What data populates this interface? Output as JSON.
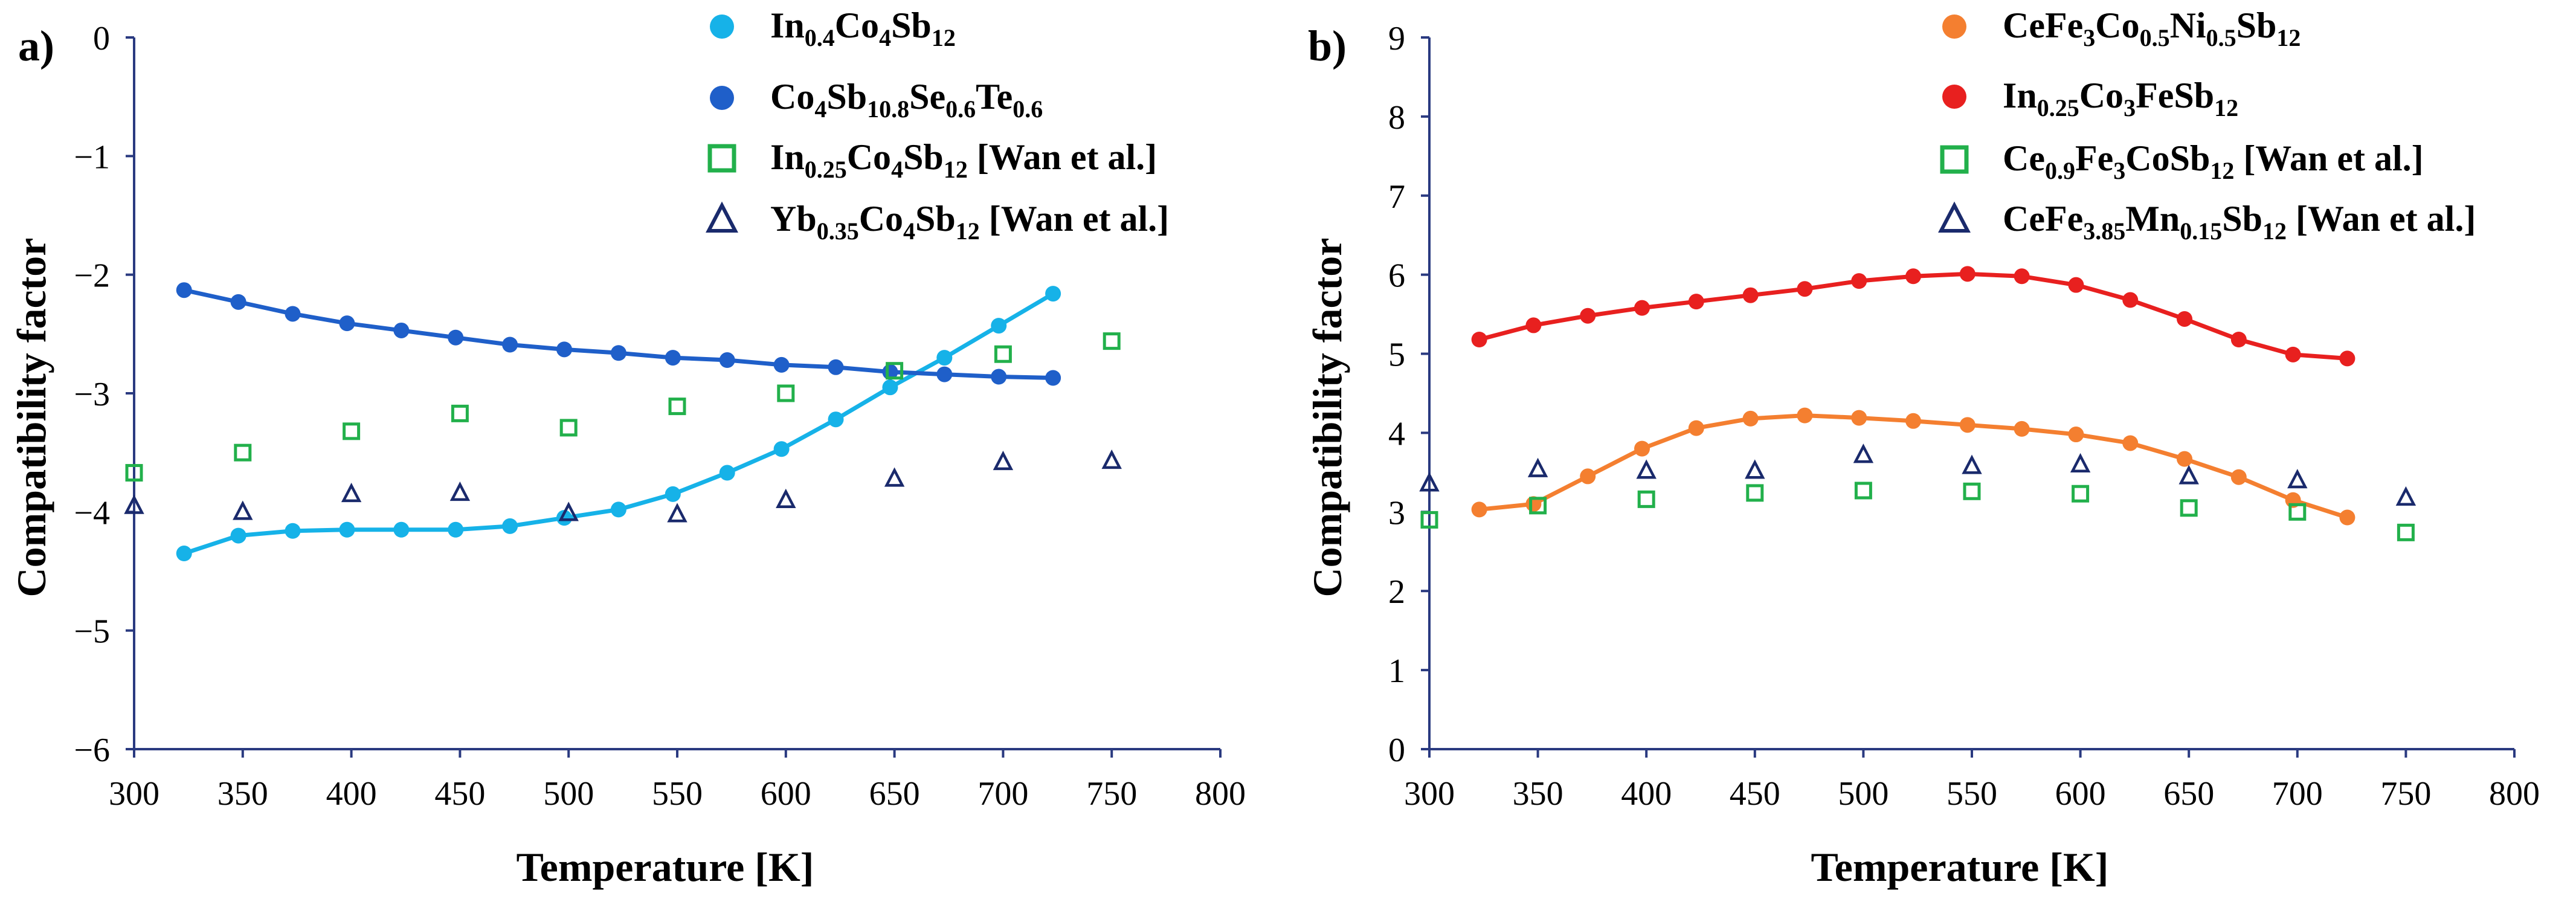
{
  "chart_data": [
    {
      "type": "scatter",
      "panel_label": "a)",
      "xlabel": "Temperature [K]",
      "ylabel": "Compatibility factor",
      "xlim": [
        300,
        800
      ],
      "ylim": [
        -6,
        0
      ],
      "xticks": [
        "300",
        "350",
        "400",
        "450",
        "500",
        "550",
        "600",
        "650",
        "700",
        "750",
        "800"
      ],
      "yticks": [
        "0",
        "−1",
        "−2",
        "−3",
        "−4",
        "−5",
        "−6"
      ],
      "series": [
        {
          "name": "In0.4Co4Sb12",
          "legend": [
            [
              "In",
              "n"
            ],
            [
              "0.4",
              "s"
            ],
            [
              "Co",
              "n"
            ],
            [
              "4",
              "s"
            ],
            [
              "Sb",
              "n"
            ],
            [
              "12",
              "s"
            ]
          ],
          "marker": "circle",
          "color": "#16b2e8",
          "line": true,
          "x": [
            323,
            348,
            373,
            398,
            423,
            448,
            473,
            498,
            523,
            548,
            573,
            598,
            623,
            648,
            673,
            698,
            723
          ],
          "y": [
            -4.35,
            -4.2,
            -4.16,
            -4.15,
            -4.15,
            -4.15,
            -4.12,
            -4.05,
            -3.98,
            -3.85,
            -3.67,
            -3.47,
            -3.22,
            -2.95,
            -2.7,
            -2.43,
            -2.16
          ]
        },
        {
          "name": "Co4Sb10.8Se0.6Te0.6",
          "legend": [
            [
              "Co",
              "n"
            ],
            [
              "4",
              "s"
            ],
            [
              "Sb",
              "n"
            ],
            [
              "10.8",
              "s"
            ],
            [
              "Se",
              "n"
            ],
            [
              "0.6",
              "s"
            ],
            [
              "Te",
              "n"
            ],
            [
              "0.6",
              "s"
            ]
          ],
          "marker": "circle",
          "color": "#1f5fc9",
          "line": true,
          "x": [
            323,
            348,
            373,
            398,
            423,
            448,
            473,
            498,
            523,
            548,
            573,
            598,
            623,
            648,
            673,
            698,
            723
          ],
          "y": [
            -2.13,
            -2.23,
            -2.33,
            -2.41,
            -2.47,
            -2.53,
            -2.59,
            -2.63,
            -2.66,
            -2.7,
            -2.72,
            -2.76,
            -2.78,
            -2.82,
            -2.84,
            -2.86,
            -2.87
          ]
        },
        {
          "name": "In0.25Co4Sb12 [Wan et al.]",
          "legend": [
            [
              "In",
              "n"
            ],
            [
              "0.25",
              "s"
            ],
            [
              "Co",
              "n"
            ],
            [
              "4",
              "s"
            ],
            [
              "Sb",
              "n"
            ],
            [
              "12",
              "s"
            ],
            [
              " [Wan et al.]",
              "n"
            ]
          ],
          "marker": "square",
          "color": "#22b04b",
          "line": false,
          "x": [
            300,
            350,
            400,
            450,
            500,
            550,
            600,
            650,
            700,
            750
          ],
          "y": [
            -3.67,
            -3.5,
            -3.32,
            -3.17,
            -3.29,
            -3.11,
            -3.0,
            -2.81,
            -2.67,
            -2.56
          ]
        },
        {
          "name": "Yb0.35Co4Sb12 [Wan et al.]",
          "legend": [
            [
              "Yb",
              "n"
            ],
            [
              "0.35",
              "s"
            ],
            [
              "Co",
              "n"
            ],
            [
              "4",
              "s"
            ],
            [
              "Sb",
              "n"
            ],
            [
              "12",
              "s"
            ],
            [
              " [Wan et al.]",
              "n"
            ]
          ],
          "marker": "triangle",
          "color": "#1a2a6c",
          "line": false,
          "x": [
            300,
            350,
            400,
            450,
            500,
            550,
            600,
            650,
            700,
            750
          ],
          "y": [
            -3.95,
            -4.0,
            -3.85,
            -3.84,
            -4.01,
            -4.02,
            -3.9,
            -3.72,
            -3.58,
            -3.57
          ]
        }
      ]
    },
    {
      "type": "scatter",
      "panel_label": "b)",
      "xlabel": "Temperature [K]",
      "ylabel": "Compatibility factor",
      "xlim": [
        300,
        800
      ],
      "ylim": [
        0,
        9
      ],
      "xticks": [
        "300",
        "350",
        "400",
        "450",
        "500",
        "550",
        "600",
        "650",
        "700",
        "750",
        "800"
      ],
      "yticks": [
        "0",
        "1",
        "2",
        "3",
        "4",
        "5",
        "6",
        "7",
        "8",
        "9"
      ],
      "series": [
        {
          "name": "CeFe3Co0.5Ni0.5Sb12",
          "legend": [
            [
              "CeFe",
              "n"
            ],
            [
              "3",
              "s"
            ],
            [
              "Co",
              "n"
            ],
            [
              "0.5",
              "s"
            ],
            [
              "Ni",
              "n"
            ],
            [
              "0.5",
              "s"
            ],
            [
              "Sb",
              "n"
            ],
            [
              "12",
              "s"
            ]
          ],
          "marker": "circle",
          "color": "#f47f30",
          "line": true,
          "x": [
            323,
            348,
            373,
            398,
            423,
            448,
            473,
            498,
            523,
            548,
            573,
            598,
            623,
            648,
            673,
            698,
            723
          ],
          "y": [
            3.03,
            3.1,
            3.45,
            3.8,
            4.06,
            4.18,
            4.22,
            4.19,
            4.15,
            4.1,
            4.05,
            3.98,
            3.87,
            3.67,
            3.44,
            3.15,
            2.93
          ]
        },
        {
          "name": "In0.25Co3FeSb12",
          "legend": [
            [
              "In",
              "n"
            ],
            [
              "0.25",
              "s"
            ],
            [
              "Co",
              "n"
            ],
            [
              "3",
              "s"
            ],
            [
              "FeSb",
              "n"
            ],
            [
              "12",
              "s"
            ]
          ],
          "marker": "circle",
          "color": "#e8201f",
          "line": true,
          "x": [
            323,
            348,
            373,
            398,
            423,
            448,
            473,
            498,
            523,
            548,
            573,
            598,
            623,
            648,
            673,
            698,
            723
          ],
          "y": [
            5.18,
            5.36,
            5.48,
            5.58,
            5.66,
            5.74,
            5.82,
            5.92,
            5.98,
            6.01,
            5.98,
            5.87,
            5.68,
            5.44,
            5.18,
            4.99,
            4.94
          ]
        },
        {
          "name": "Ce0.9Fe3CoSb12 [Wan et al.]",
          "legend": [
            [
              "Ce",
              "n"
            ],
            [
              "0.9",
              "s"
            ],
            [
              "Fe",
              "n"
            ],
            [
              "3",
              "s"
            ],
            [
              "CoSb",
              "n"
            ],
            [
              "12",
              "s"
            ],
            [
              " [Wan et al.]",
              "n"
            ]
          ],
          "marker": "square",
          "color": "#22b04b",
          "line": false,
          "x": [
            300,
            350,
            400,
            450,
            500,
            550,
            600,
            650,
            700,
            750
          ],
          "y": [
            2.9,
            3.08,
            3.16,
            3.24,
            3.27,
            3.26,
            3.23,
            3.05,
            3.0,
            2.74
          ]
        },
        {
          "name": "CeFe3.85Mn0.15Sb12 [Wan et al.]",
          "legend": [
            [
              "CeFe",
              "n"
            ],
            [
              "3.85",
              "s"
            ],
            [
              "Mn",
              "n"
            ],
            [
              "0.15",
              "s"
            ],
            [
              "Sb",
              "n"
            ],
            [
              "12",
              "s"
            ],
            [
              " [Wan et al.]",
              "n"
            ]
          ],
          "marker": "triangle",
          "color": "#1a2a6c",
          "line": false,
          "x": [
            300,
            350,
            400,
            450,
            500,
            550,
            600,
            650,
            700,
            750
          ],
          "y": [
            3.36,
            3.54,
            3.52,
            3.52,
            3.72,
            3.58,
            3.6,
            3.45,
            3.4,
            3.18
          ]
        }
      ]
    }
  ]
}
